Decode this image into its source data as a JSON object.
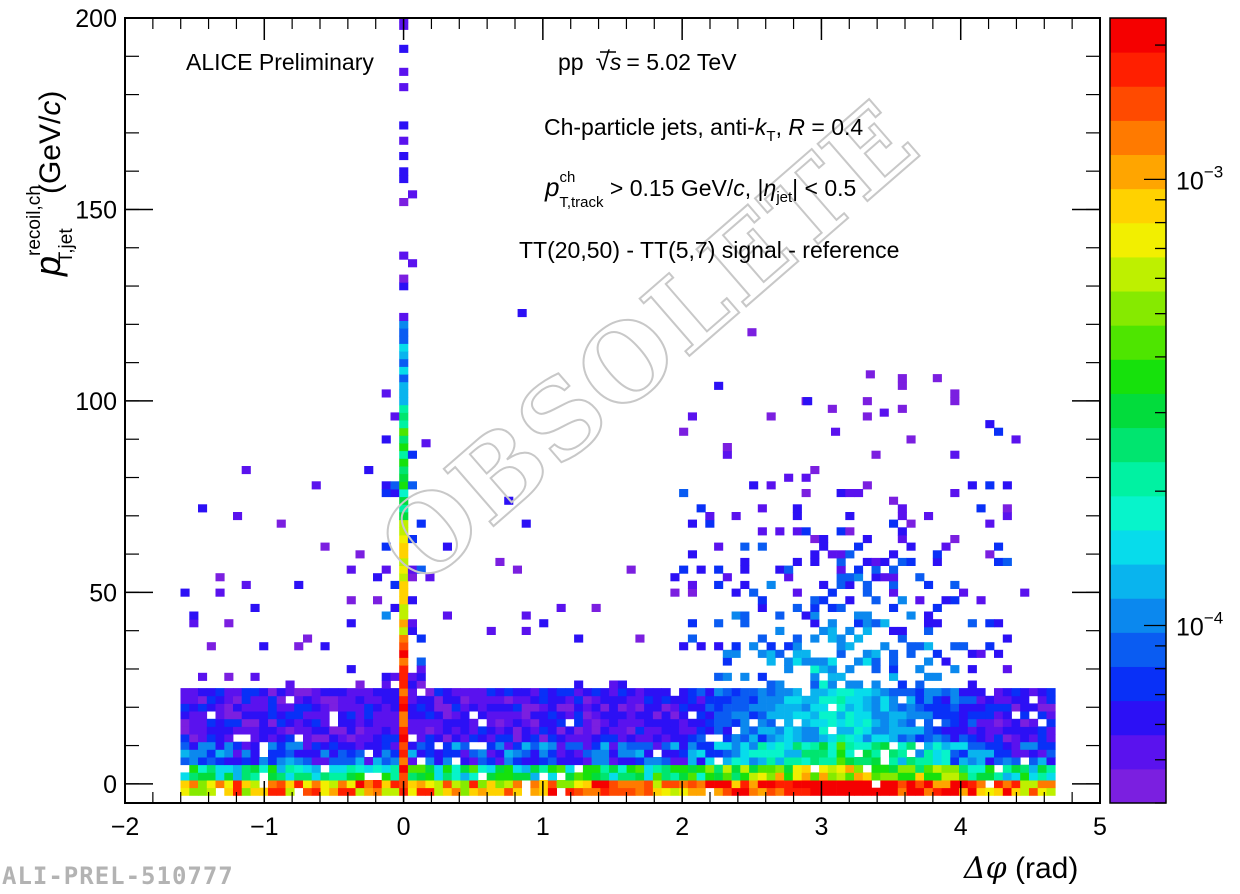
{
  "chart_data": {
    "type": "heatmap",
    "annotations": {
      "experiment": "ALICE Preliminary",
      "collision_prefix": "pp",
      "collision_var": "s",
      "collision_value": "= 5.02 TeV",
      "jets_line_prefix": "Ch-particle jets, anti-",
      "jets_k": "k",
      "jets_k_sub": "T",
      "jets_line_mid": ", ",
      "jets_R": "R",
      "jets_R_value": " = 0.4",
      "track_p": "p",
      "track_sup": "ch",
      "track_sub": "T,track",
      "track_cut": " > 0.15 GeV/",
      "track_c": "c",
      "track_eta_pre": ", |",
      "track_eta": "η",
      "track_eta_sub": "jet",
      "track_eta_cut": "| < 0.5",
      "tt_line": "TT(20,50) - TT(5,7) signal - reference",
      "watermark": "OBSOLETE"
    },
    "xaxis": {
      "label_symbol": "Δφ",
      "label_unit": " (rad)",
      "range": [
        -2,
        5
      ],
      "ticks": [
        "−2",
        "−1",
        "0",
        "1",
        "2",
        "3",
        "4",
        "5"
      ],
      "tick_values": [
        -2,
        -1,
        0,
        1,
        2,
        3,
        4,
        5
      ]
    },
    "yaxis": {
      "label_p": "p",
      "label_sup": "recoil,ch",
      "label_sub": "T,jet",
      "label_unit_pre": " (GeV/",
      "label_unit_c": "c",
      "label_unit_post": ")",
      "range": [
        -5,
        200
      ],
      "ticks": [
        "0",
        "50",
        "100",
        "150",
        "200"
      ],
      "tick_values": [
        0,
        50,
        100,
        150,
        200
      ]
    },
    "zaxis": {
      "scale": "log",
      "range": [
        4e-05,
        0.0023
      ],
      "labeled_ticks": [
        {
          "value": 0.0001,
          "base": "10",
          "exp": "−4"
        },
        {
          "value": 0.001,
          "base": "10",
          "exp": "−3"
        }
      ],
      "palette": [
        "#7b1fe0",
        "#5a12ee",
        "#2c10f5",
        "#0930f7",
        "#0a5cf2",
        "#0b88ee",
        "#09b4ee",
        "#07dceb",
        "#07f4cb",
        "#00f2a2",
        "#00e56f",
        "#02dc3c",
        "#16e10c",
        "#4ee500",
        "#86ea00",
        "#bef000",
        "#f2ef00",
        "#ffd200",
        "#ffa500",
        "#ff7a00",
        "#ff4a00",
        "#ff1f00",
        "#f50000"
      ]
    },
    "grid": false,
    "legend": "none",
    "peaks": {
      "near_side": {
        "dphi": 0.0,
        "pt_max": 200
      },
      "away_side": {
        "dphi": 3.14,
        "pt_max": 108
      },
      "low_pt_band": {
        "pt_range": [
          -3,
          25
        ],
        "dphi_range": [
          -1.6,
          4.7
        ]
      }
    },
    "reference_id": "ALI-PREL-510777"
  }
}
